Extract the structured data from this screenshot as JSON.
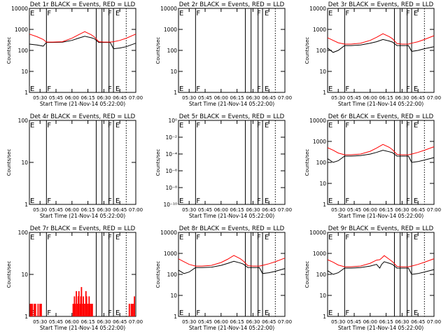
{
  "figure": {
    "xlabel": "Start Time (21-Nov-14 05:22:00)",
    "ylabel": "Counts/sec",
    "x_ticks": [
      "05:30",
      "05:45",
      "06:00",
      "06:15",
      "06:30",
      "06:45",
      "07:00"
    ],
    "x_range_hours": [
      5.333,
      7.0
    ],
    "marker_E": "E",
    "marker_F": "F",
    "colors": {
      "events": "#000000",
      "lld": "#ff0000"
    }
  },
  "chart_data": [
    {
      "type": "line",
      "title": "Det 1r  BLACK = Events, RED = LLD",
      "yscale": "log",
      "ylim": [
        1,
        10000
      ],
      "y_ticks": [
        "1",
        "10",
        "100",
        "1000",
        "10000"
      ],
      "series": [
        {
          "name": "Events",
          "color": "#000000",
          "x": [
            5.333,
            5.45,
            5.55,
            5.6,
            5.7,
            5.85,
            6.0,
            6.1,
            6.2,
            6.3,
            6.35,
            6.42,
            6.5,
            6.6,
            6.65,
            6.75,
            6.85,
            7.0
          ],
          "y": [
            200,
            180,
            160,
            240,
            240,
            245,
            300,
            380,
            470,
            400,
            360,
            240,
            240,
            240,
            120,
            130,
            150,
            220
          ]
        },
        {
          "name": "LLD",
          "color": "#ff0000",
          "x": [
            5.333,
            5.45,
            5.55,
            5.6,
            5.7,
            5.85,
            6.0,
            6.1,
            6.2,
            6.3,
            6.35,
            6.42,
            6.5,
            6.6,
            6.65,
            6.75,
            6.85,
            7.0
          ],
          "y": [
            600,
            450,
            330,
            250,
            250,
            260,
            380,
            550,
            780,
            560,
            440,
            260,
            250,
            250,
            260,
            300,
            380,
            600
          ]
        }
      ],
      "markers": {
        "E": [
          5.333,
          6.67
        ],
        "F": [
          5.6,
          6.55
        ],
        "solid_lines": [
          5.6,
          6.38,
          6.47,
          6.58,
          6.65
        ],
        "dotted_lines": [
          6.85
        ]
      }
    },
    {
      "type": "line",
      "title": "Det 2r  BLACK = Events, RED = LLD",
      "yscale": "log",
      "ylim": [
        1,
        10000
      ],
      "y_ticks": [
        "1",
        "10",
        "100",
        "1000",
        "10000"
      ],
      "series": [],
      "markers": {
        "E": [
          5.333,
          6.67
        ],
        "F": [
          5.6,
          6.55
        ],
        "solid_lines": [
          5.6,
          6.38,
          6.47,
          6.58,
          6.65
        ],
        "dotted_lines": [
          6.85
        ]
      }
    },
    {
      "type": "line",
      "title": "Det 3r  BLACK = Events, RED = LLD",
      "yscale": "log",
      "ylim": [
        1,
        10000
      ],
      "y_ticks": [
        "1",
        "10",
        "100",
        "1000",
        "10000"
      ],
      "series": [
        {
          "name": "Events",
          "color": "#000000",
          "x": [
            5.333,
            5.42,
            5.5,
            5.6,
            5.7,
            5.85,
            6.0,
            6.1,
            6.2,
            6.3,
            6.35,
            6.42,
            6.5,
            6.6,
            6.65,
            6.75,
            6.85,
            7.0
          ],
          "y": [
            130,
            80,
            100,
            170,
            170,
            180,
            220,
            260,
            330,
            280,
            250,
            170,
            170,
            170,
            90,
            100,
            120,
            150
          ]
        },
        {
          "name": "LLD",
          "color": "#ff0000",
          "x": [
            5.333,
            5.42,
            5.5,
            5.6,
            5.7,
            5.85,
            6.0,
            6.1,
            6.2,
            6.3,
            6.35,
            6.42,
            6.5,
            6.6,
            6.65,
            6.75,
            6.85,
            7.0
          ],
          "y": [
            400,
            300,
            230,
            200,
            200,
            220,
            300,
            420,
            620,
            450,
            360,
            210,
            200,
            200,
            220,
            260,
            330,
            500
          ]
        }
      ],
      "markers": {
        "E": [
          5.333,
          6.67
        ],
        "F": [
          5.6,
          6.55
        ],
        "solid_lines": [
          5.6,
          6.38,
          6.47,
          6.58,
          6.65
        ],
        "dotted_lines": [
          6.85
        ]
      }
    },
    {
      "type": "line",
      "title": "Det 4r  BLACK = Events, RED = LLD",
      "yscale": "log",
      "ylim": [
        1,
        100
      ],
      "y_ticks": [
        "1",
        "10",
        "100"
      ],
      "series": [],
      "markers": {
        "E": [
          5.333,
          6.67
        ],
        "F": [
          5.6,
          6.55
        ],
        "solid_lines": [
          5.6,
          6.38,
          6.47,
          6.58,
          6.65
        ],
        "dotted_lines": [
          6.85
        ]
      }
    },
    {
      "type": "line",
      "title": "Det 5r  BLACK = Events, RED = LLD",
      "yscale": "log",
      "ylim": [
        1e-10,
        1
      ],
      "y_ticks": [
        "10⁻¹⁰",
        "10⁻⁸",
        "10⁻⁶",
        "10⁻⁴",
        "10⁻²",
        "10⁰"
      ],
      "series": [],
      "markers": {
        "E": [
          5.333,
          6.67
        ],
        "F": [
          5.6,
          6.55
        ],
        "solid_lines": [
          5.6,
          6.38,
          6.47,
          6.58,
          6.65
        ],
        "dotted_lines": [
          6.85
        ]
      }
    },
    {
      "type": "line",
      "title": "Det 6r  BLACK = Events, RED = LLD",
      "yscale": "log",
      "ylim": [
        1,
        10000
      ],
      "y_ticks": [
        "1",
        "10",
        "100",
        "1000",
        "10000"
      ],
      "series": [
        {
          "name": "Events",
          "color": "#000000",
          "x": [
            5.333,
            5.42,
            5.5,
            5.6,
            5.7,
            5.85,
            6.0,
            6.1,
            6.2,
            6.3,
            6.35,
            6.42,
            6.5,
            6.6,
            6.65,
            6.75,
            6.85,
            7.0
          ],
          "y": [
            150,
            100,
            120,
            200,
            200,
            210,
            250,
            300,
            380,
            320,
            290,
            200,
            200,
            200,
            100,
            110,
            130,
            170
          ]
        },
        {
          "name": "LLD",
          "color": "#ff0000",
          "x": [
            5.333,
            5.42,
            5.5,
            5.6,
            5.7,
            5.85,
            6.0,
            6.1,
            6.2,
            6.3,
            6.35,
            6.42,
            6.5,
            6.6,
            6.65,
            6.75,
            6.85,
            7.0
          ],
          "y": [
            500,
            380,
            280,
            230,
            230,
            250,
            340,
            480,
            720,
            520,
            400,
            240,
            230,
            230,
            250,
            300,
            380,
            560
          ]
        }
      ],
      "markers": {
        "E": [
          5.333,
          6.67
        ],
        "F": [
          5.6,
          6.55
        ],
        "solid_lines": [
          5.6,
          6.38,
          6.47,
          6.58,
          6.65
        ],
        "dotted_lines": [
          6.85
        ]
      }
    },
    {
      "type": "bar",
      "title": "Det 7r  BLACK = Events, RED = LLD",
      "yscale": "log",
      "ylim": [
        1,
        100
      ],
      "y_ticks": [
        "1",
        "10",
        "100"
      ],
      "series": [
        {
          "name": "LLD",
          "color": "#ff0000",
          "x": [
            5.35,
            5.36,
            5.37,
            5.38,
            5.39,
            5.41,
            5.43,
            5.44,
            5.47,
            5.48,
            5.5,
            5.52,
            6.02,
            6.04,
            6.05,
            6.07,
            6.08,
            6.1,
            6.11,
            6.13,
            6.14,
            6.15,
            6.17,
            6.18,
            6.2,
            6.22,
            6.23,
            6.25,
            6.27,
            6.28,
            6.3,
            6.32,
            6.9,
            6.92,
            6.93,
            6.95,
            6.97,
            6.98
          ],
          "y": [
            2,
            1,
            2,
            2,
            1,
            2,
            2,
            1,
            2,
            1,
            2,
            2,
            2,
            3,
            2,
            4,
            2,
            3,
            4,
            2,
            3,
            5,
            2,
            3,
            2,
            4,
            3,
            2,
            3,
            2,
            2,
            2,
            2,
            1,
            2,
            2,
            2,
            3
          ]
        }
      ],
      "markers": {
        "E": [
          5.333,
          6.67
        ],
        "F": [
          5.6,
          6.55
        ],
        "solid_lines": [
          5.6,
          6.38,
          6.47,
          6.58,
          6.65
        ],
        "dotted_lines": [
          6.85
        ]
      }
    },
    {
      "type": "line",
      "title": "Det 8r  BLACK = Events, RED = LLD",
      "yscale": "log",
      "ylim": [
        1,
        10000
      ],
      "y_ticks": [
        "1",
        "10",
        "100",
        "1000",
        "10000"
      ],
      "series": [
        {
          "name": "Events",
          "color": "#000000",
          "x": [
            5.333,
            5.42,
            5.5,
            5.6,
            5.7,
            5.85,
            6.0,
            6.1,
            6.2,
            6.3,
            6.35,
            6.42,
            6.5,
            6.6,
            6.65,
            6.75,
            6.85,
            7.0
          ],
          "y": [
            160,
            110,
            130,
            210,
            210,
            220,
            270,
            330,
            420,
            350,
            310,
            210,
            210,
            210,
            110,
            120,
            140,
            190
          ]
        },
        {
          "name": "LLD",
          "color": "#ff0000",
          "x": [
            5.333,
            5.42,
            5.5,
            5.6,
            5.7,
            5.85,
            6.0,
            6.1,
            6.2,
            6.3,
            6.35,
            6.42,
            6.5,
            6.6,
            6.65,
            6.75,
            6.85,
            7.0
          ],
          "y": [
            550,
            400,
            300,
            250,
            250,
            270,
            370,
            520,
            800,
            560,
            430,
            260,
            250,
            250,
            270,
            320,
            400,
            600
          ]
        }
      ],
      "markers": {
        "E": [
          5.333,
          6.67
        ],
        "F": [
          5.6,
          6.55
        ],
        "solid_lines": [
          5.6,
          6.38,
          6.47,
          6.58,
          6.65
        ],
        "dotted_lines": [
          6.85
        ]
      }
    },
    {
      "type": "line",
      "title": "Det 9r  BLACK = Events, RED = LLD",
      "yscale": "log",
      "ylim": [
        1,
        10000
      ],
      "y_ticks": [
        "1",
        "10",
        "100",
        "1000",
        "10000"
      ],
      "series": [
        {
          "name": "Events",
          "color": "#000000",
          "x": [
            5.333,
            5.42,
            5.5,
            5.6,
            5.7,
            5.85,
            6.0,
            6.1,
            6.15,
            6.18,
            6.22,
            6.3,
            6.35,
            6.42,
            6.5,
            6.6,
            6.65,
            6.75,
            6.85,
            7.0
          ],
          "y": [
            150,
            100,
            120,
            200,
            200,
            210,
            250,
            300,
            200,
            300,
            400,
            340,
            300,
            200,
            200,
            200,
            100,
            110,
            130,
            170
          ]
        },
        {
          "name": "LLD",
          "color": "#ff0000",
          "x": [
            5.333,
            5.42,
            5.5,
            5.6,
            5.7,
            5.85,
            6.0,
            6.1,
            6.15,
            6.18,
            6.22,
            6.3,
            6.35,
            6.42,
            6.5,
            6.6,
            6.65,
            6.75,
            6.85,
            7.0
          ],
          "y": [
            500,
            380,
            280,
            230,
            230,
            250,
            340,
            480,
            500,
            600,
            780,
            520,
            400,
            240,
            230,
            230,
            250,
            300,
            380,
            560
          ]
        }
      ],
      "markers": {
        "E": [
          5.333,
          6.67
        ],
        "F": [
          5.6,
          6.55
        ],
        "solid_lines": [
          5.6,
          6.38,
          6.47,
          6.58,
          6.65
        ],
        "dotted_lines": [
          6.85
        ]
      }
    }
  ]
}
